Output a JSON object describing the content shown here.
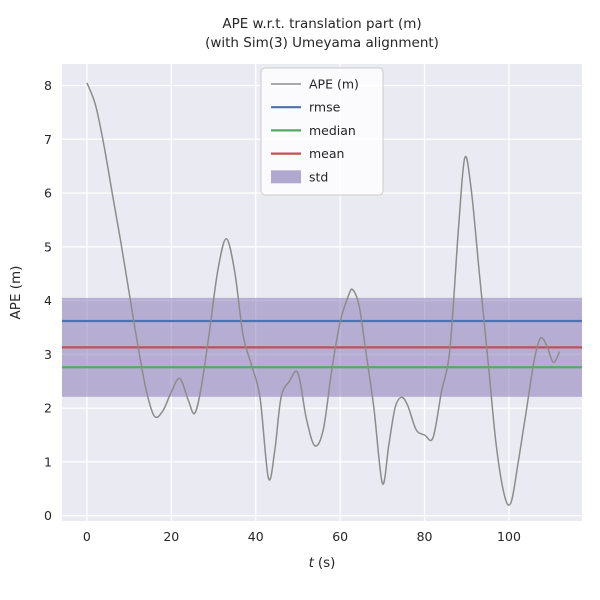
{
  "figure": {
    "title_line1": "APE w.r.t. translation part (m)",
    "title_line2": "(with Sim(3) Umeyama alignment)",
    "xlabel_var": "t",
    "xlabel_unit": "(s)",
    "ylabel": "APE (m)"
  },
  "colors": {
    "figure_bg": "#ffffff",
    "axes_bg": "#eaeaf2",
    "grid": "#ffffff",
    "text": "#262626",
    "ape_line": "#8c8c8c",
    "rmse": "#4c72b0",
    "median": "#55a868",
    "mean": "#c44e52",
    "std": "#8172b2"
  },
  "chart_data": {
    "type": "line",
    "title": "APE w.r.t. translation part (m)\n(with Sim(3) Umeyama alignment)",
    "xlabel": "t (s)",
    "ylabel": "APE (m)",
    "xlim": [
      -5.9,
      117.3
    ],
    "ylim": [
      -0.1,
      8.4
    ],
    "xticks": [
      0,
      20,
      40,
      60,
      80,
      100
    ],
    "yticks": [
      0,
      1,
      2,
      3,
      4,
      5,
      6,
      7,
      8
    ],
    "grid": true,
    "stats": {
      "rmse": 3.62,
      "mean": 3.13,
      "median": 2.76,
      "std": 0.92
    },
    "series": [
      {
        "name": "APE (m)",
        "color": "#8c8c8c",
        "x": [
          0,
          2,
          4,
          6,
          8,
          10,
          12,
          14,
          16,
          18,
          20,
          22,
          24,
          25.5,
          27,
          29,
          31,
          33,
          35,
          37,
          39,
          41,
          43,
          44.5,
          46,
          48,
          50,
          52,
          54,
          56,
          58,
          60,
          62,
          63,
          64.5,
          66,
          68,
          70,
          71.5,
          73,
          74.5,
          76,
          78,
          80,
          82,
          84,
          86,
          88,
          89.5,
          91,
          93,
          95,
          97,
          99,
          100.5,
          102,
          104,
          106,
          107.5,
          109,
          110.5,
          112
        ],
        "y": [
          8.05,
          7.65,
          6.9,
          6.0,
          5.1,
          4.15,
          3.2,
          2.35,
          1.85,
          1.95,
          2.3,
          2.55,
          2.15,
          1.9,
          2.35,
          3.4,
          4.55,
          5.15,
          4.55,
          3.35,
          2.8,
          2.2,
          0.7,
          1.2,
          2.2,
          2.5,
          2.65,
          1.8,
          1.3,
          1.6,
          2.7,
          3.6,
          4.1,
          4.2,
          3.9,
          3.1,
          2.0,
          0.6,
          1.3,
          2.0,
          2.2,
          2.05,
          1.6,
          1.5,
          1.45,
          2.3,
          3.1,
          5.3,
          6.65,
          6.1,
          4.5,
          2.9,
          1.3,
          0.35,
          0.25,
          0.9,
          1.9,
          2.9,
          3.3,
          3.15,
          2.85,
          3.05
        ]
      }
    ],
    "stat_lines": [
      {
        "name": "rmse",
        "color": "#4c72b0",
        "value": 3.62
      },
      {
        "name": "median",
        "color": "#55a868",
        "value": 2.76
      },
      {
        "name": "mean",
        "color": "#c44e52",
        "value": 3.13
      }
    ],
    "std_band": {
      "name": "std",
      "color": "#8172b2",
      "alpha": 0.5,
      "lower": 2.21,
      "upper": 4.05
    },
    "legend": {
      "position": "upper center",
      "items": [
        {
          "label": "APE (m)",
          "type": "line",
          "color": "#8c8c8c"
        },
        {
          "label": "rmse",
          "type": "line",
          "color": "#4c72b0"
        },
        {
          "label": "median",
          "type": "line",
          "color": "#55a868"
        },
        {
          "label": "mean",
          "type": "line",
          "color": "#c44e52"
        },
        {
          "label": "std",
          "type": "patch",
          "color": "#8172b2"
        }
      ]
    }
  }
}
